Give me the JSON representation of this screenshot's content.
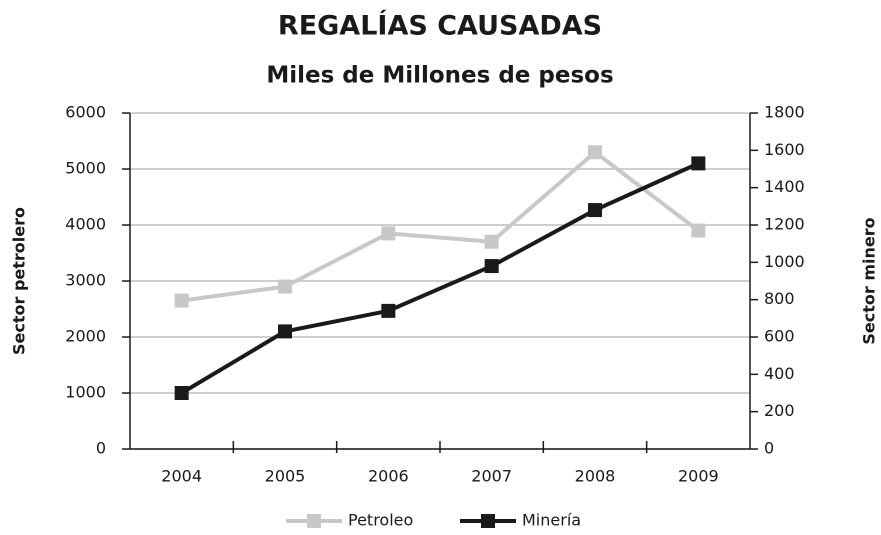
{
  "chart_data": {
    "type": "line",
    "title": "REGALÍAS CAUSADAS",
    "subtitle": "Miles de Millones de pesos",
    "ylabel": "Sector petrolero",
    "y2label": "Sector minero",
    "categories": [
      "2004",
      "2005",
      "2006",
      "2007",
      "2008",
      "2009"
    ],
    "series": [
      {
        "name": "Petroleo",
        "color": "#c8c8c8",
        "values": [
          2650,
          2900,
          3850,
          3700,
          5300,
          3900
        ]
      },
      {
        "name": "Minería",
        "color": "#1a1a1a",
        "axis": "y2",
        "values": [
          300,
          630,
          740,
          980,
          1280,
          1530
        ]
      }
    ],
    "ylim": [
      0,
      6000
    ],
    "yticks": [
      0,
      1000,
      2000,
      3000,
      4000,
      5000,
      6000
    ],
    "y2lim": [
      0,
      1800
    ],
    "y2ticks": [
      0,
      200,
      400,
      600,
      800,
      1000,
      1200,
      1400,
      1600,
      1800
    ],
    "grid": true,
    "legend": "bottom"
  }
}
